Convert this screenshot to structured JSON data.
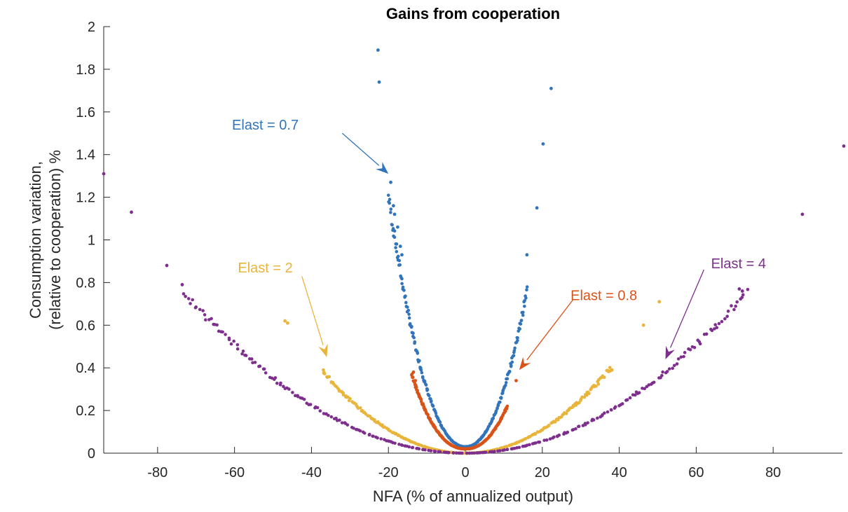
{
  "chart_data": {
    "type": "scatter",
    "title": "Gains from cooperation",
    "xlabel": "NFA (% of annualized output)",
    "ylabel_lines": [
      "Consumption variation,",
      "(relative to cooperation) %"
    ],
    "xlim": [
      -94,
      98
    ],
    "ylim": [
      0,
      2
    ],
    "xticks": [
      -80,
      -60,
      -40,
      -20,
      0,
      20,
      40,
      60,
      80
    ],
    "yticks": [
      0,
      0.2,
      0.4,
      0.6,
      0.8,
      1,
      1.2,
      1.4,
      1.6,
      1.8,
      2
    ],
    "grid": false,
    "legend": "none",
    "series": [
      {
        "name": "Elast = 0.7",
        "color": "#3274bb",
        "curve": {
          "a": 0.00205,
          "p": 2.12,
          "c": 0.03,
          "range": [
            -20,
            16
          ]
        },
        "extra_points": [
          [
            -22.7,
            1.89
          ],
          [
            -22.4,
            1.74
          ],
          [
            -19.4,
            1.27
          ],
          [
            -18.7,
            1.16
          ],
          [
            -18.4,
            1.12
          ],
          [
            -17.6,
            1.06
          ],
          [
            -16.9,
            0.97
          ],
          [
            -16.5,
            0.93
          ],
          [
            16.0,
            0.93
          ],
          [
            18.6,
            1.15
          ],
          [
            20.2,
            1.45
          ],
          [
            22.3,
            1.71
          ]
        ]
      },
      {
        "name": "Elast = 0.8",
        "color": "#d95319",
        "curve": {
          "a": 0.00105,
          "p": 2.2,
          "c": 0.02,
          "range": [
            -14,
            11
          ]
        },
        "extra_points": [
          [
            -13.5,
            0.38
          ],
          [
            -13.0,
            0.34
          ],
          [
            13.2,
            0.34
          ]
        ]
      },
      {
        "name": "Elast = 2",
        "color": "#e9b43a",
        "curve": {
          "a": 0.00026,
          "p": 2.02,
          "c": 0.0,
          "range": [
            -37,
            38
          ]
        },
        "extra_points": [
          [
            -46.9,
            0.62
          ],
          [
            -46.2,
            0.61
          ],
          [
            -36.9,
            0.39
          ],
          [
            38.1,
            0.39
          ],
          [
            46.3,
            0.6
          ],
          [
            50.4,
            0.71
          ]
        ]
      },
      {
        "name": "Elast = 4",
        "color": "#7e2f8e",
        "curve": {
          "a": 0.000141,
          "p": 2.0,
          "c": 0.0,
          "range": [
            -73,
            73
          ]
        },
        "extra_points": [
          [
            -94.5,
            1.31
          ],
          [
            -86.8,
            1.13
          ],
          [
            -77.6,
            0.88
          ],
          [
            -73.6,
            0.79
          ],
          [
            71.2,
            0.77
          ],
          [
            72.0,
            0.76
          ],
          [
            87.6,
            1.12
          ],
          [
            98.4,
            1.44
          ]
        ]
      }
    ],
    "annotations": [
      {
        "text": "Elast = 0.7",
        "color": "#3274bb",
        "text_at": [
          -52,
          1.54
        ],
        "arrow_from": [
          -32,
          1.5
        ],
        "arrow_to": [
          -20,
          1.31
        ]
      },
      {
        "text": "Elast = 2",
        "color": "#e9b43a",
        "text_at": [
          -52,
          0.87
        ],
        "arrow_from": [
          -42.5,
          0.83
        ],
        "arrow_to": [
          -36,
          0.45
        ]
      },
      {
        "text": "Elast = 0.8",
        "color": "#d95319",
        "text_at": [
          36,
          0.74
        ],
        "arrow_from": [
          28,
          0.72
        ],
        "arrow_to": [
          14,
          0.39
        ]
      },
      {
        "text": "Elast = 4",
        "color": "#7e2f8e",
        "text_at": [
          71,
          0.89
        ],
        "arrow_from": [
          62,
          0.86
        ],
        "arrow_to": [
          52,
          0.44
        ]
      }
    ]
  }
}
